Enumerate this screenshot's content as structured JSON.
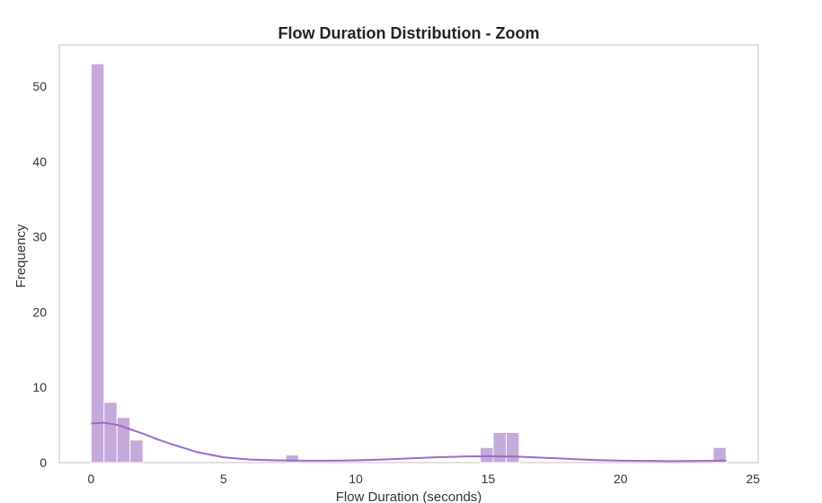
{
  "chart_data": {
    "type": "bar",
    "title": "Flow Duration Distribution - Zoom",
    "xlabel": "Flow Duration (seconds)",
    "ylabel": "Frequency",
    "xlim": [
      -1.2,
      25.2
    ],
    "ylim": [
      0,
      55.5
    ],
    "xticks": [
      0,
      5,
      10,
      15,
      20,
      25
    ],
    "yticks": [
      0,
      10,
      20,
      30,
      40,
      50
    ],
    "grid": false,
    "bin_width": 0.49,
    "bins": [
      {
        "start": 0.0,
        "count": 53
      },
      {
        "start": 0.49,
        "count": 8
      },
      {
        "start": 0.98,
        "count": 6
      },
      {
        "start": 1.47,
        "count": 3
      },
      {
        "start": 7.35,
        "count": 1
      },
      {
        "start": 14.7,
        "count": 2
      },
      {
        "start": 15.19,
        "count": 4
      },
      {
        "start": 15.68,
        "count": 4
      },
      {
        "start": 23.5,
        "count": 2
      }
    ],
    "kde": {
      "x": [
        0,
        0.5,
        1,
        1.5,
        2,
        2.5,
        3,
        4,
        5,
        6,
        7,
        8,
        9,
        10,
        11,
        12,
        13,
        14,
        15,
        16,
        17,
        18,
        19,
        20,
        21,
        22,
        23,
        24
      ],
      "y": [
        5.2,
        5.3,
        5.0,
        4.4,
        3.8,
        3.1,
        2.5,
        1.4,
        0.7,
        0.4,
        0.3,
        0.25,
        0.25,
        0.3,
        0.4,
        0.55,
        0.7,
        0.8,
        0.85,
        0.8,
        0.65,
        0.5,
        0.35,
        0.25,
        0.22,
        0.2,
        0.22,
        0.25
      ]
    },
    "colors": {
      "bar": "#c5aadb",
      "kde": "#9b6bc6"
    }
  }
}
